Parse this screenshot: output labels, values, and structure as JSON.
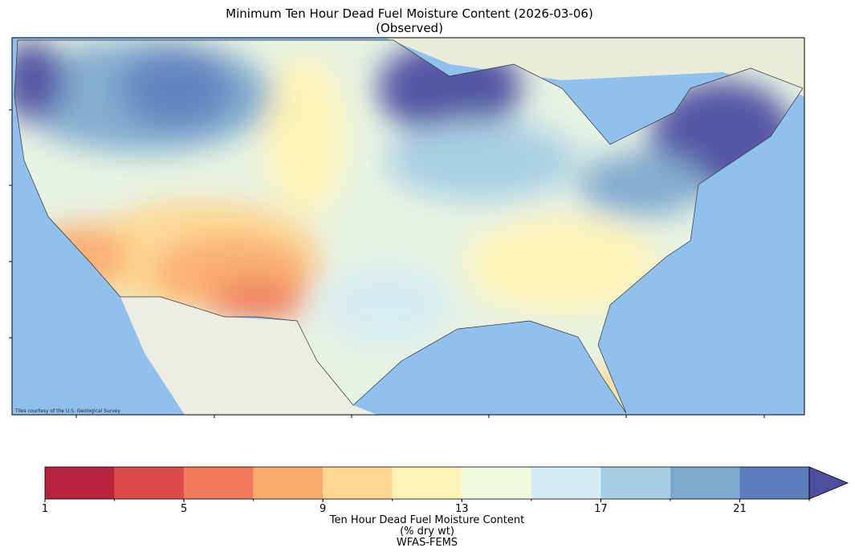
{
  "title": "Minimum Ten Hour Dead Fuel Moisture Content (2026-03-06)",
  "subtitle": "(Observed)",
  "attribution": "Tiles courtesy of the U.S. Geological Survey",
  "colorbar": {
    "boundaries": [
      1,
      3,
      5,
      7,
      9,
      11,
      13,
      15,
      17,
      19,
      21,
      23
    ],
    "colors": [
      "#b8243f",
      "#dc4a48",
      "#f07a5a",
      "#fcab6c",
      "#fed690",
      "#fef3b4",
      "#f0f8de",
      "#d5ecf3",
      "#a7cfe3",
      "#7ea9cf",
      "#5d7ebd"
    ],
    "extend_color": "#4d4ea0",
    "ticks": [
      1,
      5,
      9,
      13,
      17,
      21
    ],
    "label": [
      "Ten Hour Dead Fuel Moisture Content",
      "(% dry wt)",
      "WFAS-FEMS"
    ]
  }
}
